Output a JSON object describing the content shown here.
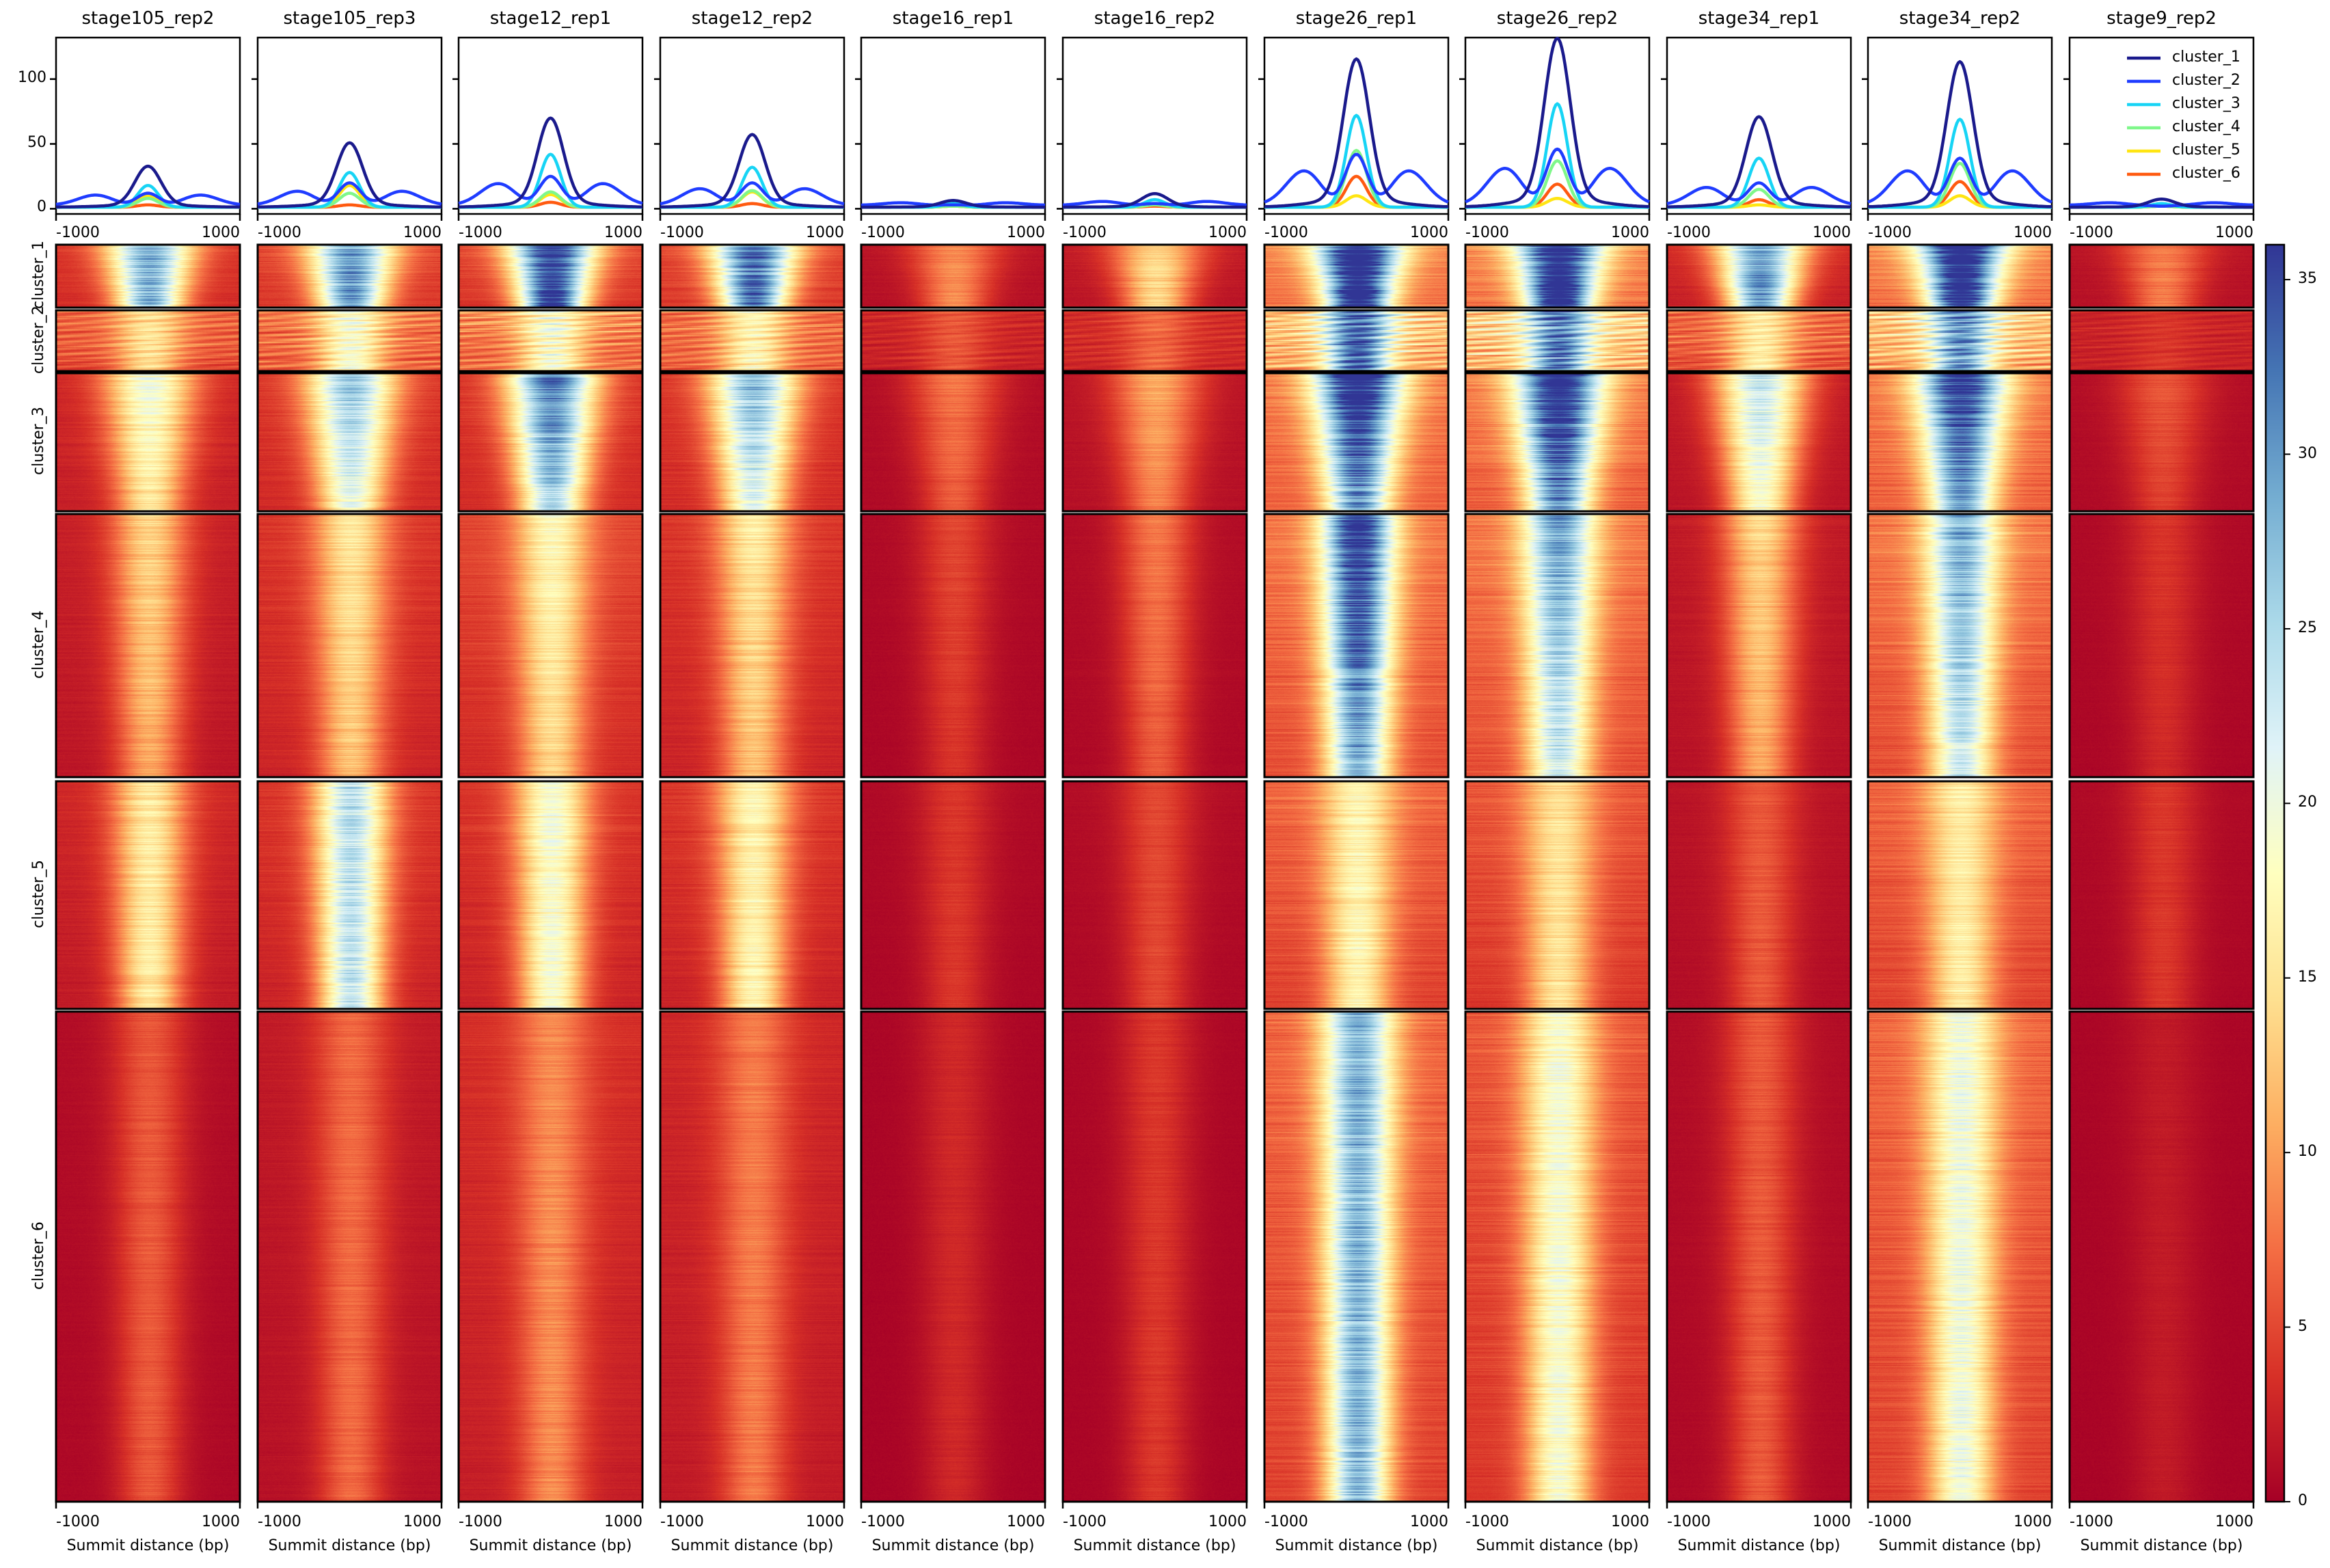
{
  "chart_data": {
    "type": "heatmap",
    "description_kind": "profile + heatmap grid",
    "samples": [
      "stage105_rep2",
      "stage105_rep3",
      "stage12_rep1",
      "stage12_rep2",
      "stage16_rep1",
      "stage16_rep2",
      "stage26_rep1",
      "stage26_rep2",
      "stage34_rep1",
      "stage34_rep2",
      "stage9_rep2"
    ],
    "clusters": [
      "cluster_1",
      "cluster_2",
      "cluster_3",
      "cluster_4",
      "cluster_5",
      "cluster_6"
    ],
    "cluster_colors": [
      "#1a1a8c",
      "#1f3cff",
      "#17d4f5",
      "#7ff78a",
      "#ffe512",
      "#ff5a10"
    ],
    "profile": {
      "ylim": [
        -4,
        132
      ],
      "yticks": [
        0,
        50,
        100
      ],
      "ytick_labels": [
        "0",
        "50",
        "100"
      ],
      "xlim": [
        -1000,
        1000
      ],
      "xtick_labels": [
        "-1000",
        "1000"
      ],
      "legend_entries": [
        "cluster_1",
        "cluster_2",
        "cluster_3",
        "cluster_4",
        "cluster_5",
        "cluster_6"
      ],
      "legend_loc": "upper right (last panel)",
      "peak_values": [
        [
          31,
          12,
          18,
          8,
          10,
          3
        ],
        [
          48,
          20,
          28,
          12,
          18,
          3
        ],
        [
          66,
          25,
          42,
          13,
          11,
          5
        ],
        [
          54,
          20,
          32,
          14,
          13,
          4
        ],
        [
          6,
          3,
          4,
          2,
          2,
          2
        ],
        [
          11,
          4,
          7,
          3,
          3,
          2
        ],
        [
          109,
          42,
          72,
          45,
          10,
          25
        ],
        [
          124,
          46,
          81,
          37,
          8,
          19
        ],
        [
          67,
          20,
          39,
          15,
          3,
          7
        ],
        [
          107,
          39,
          69,
          35,
          10,
          21
        ],
        [
          7,
          2,
          4,
          2,
          2,
          2
        ]
      ],
      "cluster2_flank_values": [
        8,
        11,
        17,
        13,
        2,
        3,
        27,
        29,
        14,
        27,
        2
      ]
    },
    "heatmap": {
      "colormap": "RdYlBu",
      "vmin": 0,
      "vmax": 36,
      "colorbar_ticks": [
        0,
        5,
        10,
        15,
        20,
        25,
        30,
        35
      ],
      "colorbar_tick_labels": [
        "0",
        "5",
        "10",
        "15",
        "20",
        "25",
        "30",
        "35"
      ],
      "xlabel": "Summit distance (bp)",
      "xtick_labels": [
        "-1000",
        "1000"
      ],
      "center_intensity": [
        [
          28,
          15,
          20,
          14,
          16,
          6
        ],
        [
          30,
          19,
          27,
          16,
          24,
          7
        ],
        [
          36,
          19,
          33,
          18,
          19,
          9
        ],
        [
          33,
          17,
          28,
          16,
          17,
          8
        ],
        [
          9,
          6,
          8,
          5,
          4,
          3
        ],
        [
          14,
          7,
          11,
          8,
          5,
          4
        ],
        [
          40,
          34,
          40,
          38,
          17,
          28
        ],
        [
          40,
          32,
          40,
          30,
          15,
          19
        ],
        [
          30,
          16,
          24,
          14,
          6,
          6
        ],
        [
          40,
          31,
          38,
          30,
          16,
          20
        ],
        [
          8,
          4,
          6,
          4,
          4,
          2
        ]
      ],
      "background_intensity": [
        [
          4,
          7,
          3,
          2.5,
          3,
          1
        ],
        [
          5,
          8,
          4,
          4,
          4,
          2
        ],
        [
          5,
          9,
          4,
          5,
          4,
          3.5
        ],
        [
          5,
          8,
          4,
          4,
          4,
          3
        ],
        [
          1.5,
          3,
          1,
          0.8,
          0.8,
          0.5
        ],
        [
          2,
          3.5,
          1.5,
          1,
          1,
          0.6
        ],
        [
          9,
          13,
          8,
          8,
          7,
          7
        ],
        [
          9,
          14,
          8,
          8,
          6,
          6
        ],
        [
          3,
          7,
          2,
          2,
          1.5,
          1
        ],
        [
          9,
          13,
          8,
          8,
          7,
          7
        ],
        [
          1.5,
          3,
          1,
          0.8,
          0.8,
          0.5
        ]
      ]
    }
  }
}
